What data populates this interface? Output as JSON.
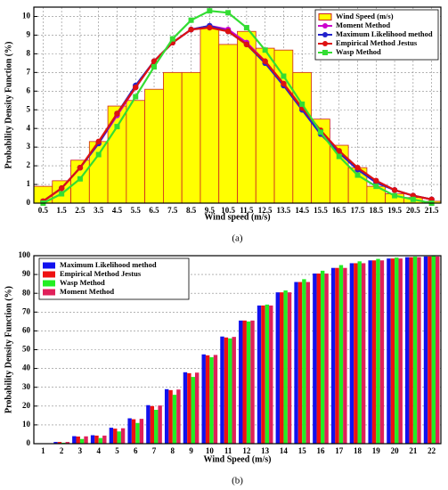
{
  "chart_data": [
    {
      "type": "combo",
      "caption": "(a)",
      "x_label": "Wind speed (m/s)",
      "y_label": "Probability Density Function (%)",
      "categories": [
        "0.5",
        "1.5",
        "2.5",
        "3.5",
        "4.5",
        "5.5",
        "6.5",
        "7.5",
        "8.5",
        "9.5",
        "10.5",
        "11.5",
        "12.5",
        "13.5",
        "14.5",
        "15.5",
        "16.5",
        "17.5",
        "18.5",
        "19.5",
        "20.5",
        "21.5"
      ],
      "bars": {
        "name": "Wind Speed (m/s)",
        "color": "#ffff00",
        "values": [
          0.9,
          1.2,
          2.3,
          3.3,
          5.2,
          5.5,
          6.1,
          7.0,
          7.0,
          9.4,
          8.5,
          9.2,
          8.3,
          8.2,
          7.0,
          4.5,
          3.1,
          1.9,
          0.9,
          0.5,
          0.3,
          0.1
        ]
      },
      "series": [
        {
          "name": "Moment Method",
          "color": "#cc00cc",
          "marker": "circle",
          "values": [
            0.1,
            0.8,
            1.9,
            3.2,
            4.7,
            6.2,
            7.6,
            8.6,
            9.3,
            9.5,
            9.3,
            8.6,
            7.6,
            6.4,
            5.1,
            3.8,
            2.7,
            1.8,
            1.2,
            0.7,
            0.4,
            0.2
          ]
        },
        {
          "name": "Maximum Likelihood method",
          "color": "#2222cc",
          "marker": "circle",
          "values": [
            0.1,
            0.8,
            1.9,
            3.2,
            4.8,
            6.3,
            7.6,
            8.6,
            9.3,
            9.5,
            9.2,
            8.5,
            7.5,
            6.3,
            5.0,
            3.7,
            2.7,
            1.8,
            1.1,
            0.7,
            0.4,
            0.2
          ]
        },
        {
          "name": "Empirical Method Jestus",
          "color": "#dd1111",
          "marker": "circle",
          "values": [
            0.1,
            0.8,
            1.9,
            3.3,
            4.8,
            6.2,
            7.6,
            8.6,
            9.3,
            9.4,
            9.2,
            8.5,
            7.6,
            6.4,
            5.1,
            3.9,
            2.8,
            1.9,
            1.2,
            0.7,
            0.4,
            0.2
          ]
        },
        {
          "name": "Wasp Method",
          "color": "#33dd33",
          "marker": "square",
          "values": [
            0.0,
            0.5,
            1.3,
            2.6,
            4.1,
            5.7,
            7.3,
            8.8,
            9.8,
            10.3,
            10.2,
            9.4,
            8.2,
            6.8,
            5.3,
            3.8,
            2.5,
            1.5,
            0.9,
            0.4,
            0.2,
            0.0
          ]
        }
      ],
      "ylim": [
        0,
        10.5
      ],
      "yticks": [
        0,
        1,
        2,
        3,
        4,
        5,
        6,
        7,
        8,
        9,
        10
      ],
      "grid": true,
      "legend": "top-right"
    },
    {
      "type": "bar",
      "caption": "(b)",
      "x_label": "Wind Speed (m/s)",
      "y_label": "Probability Density Function (%)",
      "categories": [
        "1",
        "2",
        "3",
        "4",
        "5",
        "6",
        "7",
        "8",
        "9",
        "10",
        "11",
        "12",
        "13",
        "14",
        "15",
        "16",
        "17",
        "18",
        "19",
        "20",
        "21",
        "22"
      ],
      "series": [
        {
          "name": "Maximum Likelihood method",
          "color": "#1111ee",
          "values": [
            0.2,
            0.9,
            4.0,
            4.5,
            8.5,
            13.5,
            20.5,
            29,
            38,
            47.5,
            57,
            65.5,
            73.5,
            80.5,
            86,
            90.5,
            93.5,
            96,
            97.5,
            98.5,
            99.2,
            99.6
          ]
        },
        {
          "name": "Empirical Method Jestus",
          "color": "#ee1111",
          "values": [
            0.2,
            0.9,
            3.8,
            4.3,
            8.0,
            13.0,
            20.0,
            28.5,
            37.5,
            47,
            56.5,
            65.5,
            73.5,
            80.5,
            86,
            90.5,
            93.5,
            96,
            97.5,
            98.5,
            99.2,
            99.6
          ]
        },
        {
          "name": "Wasp Method",
          "color": "#22ee22",
          "values": [
            0.1,
            0.5,
            2.5,
            3.0,
            6.5,
            11.0,
            18.0,
            26.0,
            35.5,
            46.0,
            56.0,
            65.0,
            74.0,
            81.5,
            87.5,
            92.0,
            95.0,
            97.0,
            98.3,
            99.0,
            99.5,
            99.8
          ]
        },
        {
          "name": "Moment Method",
          "color": "#e0205a",
          "values": [
            0.2,
            0.9,
            3.9,
            4.3,
            8.2,
            13.2,
            20.3,
            28.8,
            37.8,
            47.2,
            56.8,
            65.5,
            73.5,
            80.5,
            86,
            90.5,
            93.5,
            96,
            97.5,
            98.5,
            99.2,
            99.6
          ]
        }
      ],
      "ylim": [
        0,
        100
      ],
      "yticks": [
        0,
        10,
        20,
        30,
        40,
        50,
        60,
        70,
        80,
        90,
        100
      ],
      "grid": true,
      "legend": "top-left"
    }
  ]
}
